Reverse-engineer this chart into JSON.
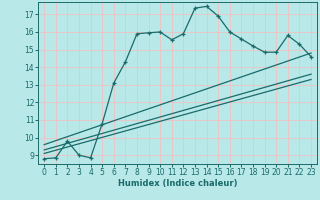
{
  "xlabel": "Humidex (Indice chaleur)",
  "bg_color": "#b8e8e8",
  "grid_color": "#e8c8c8",
  "line_color": "#1a6b6b",
  "xlim": [
    -0.5,
    23.5
  ],
  "ylim": [
    8.5,
    17.7
  ],
  "yticks": [
    9,
    10,
    11,
    12,
    13,
    14,
    15,
    16,
    17
  ],
  "xticks": [
    0,
    1,
    2,
    3,
    4,
    5,
    6,
    7,
    8,
    9,
    10,
    11,
    12,
    13,
    14,
    15,
    16,
    17,
    18,
    19,
    20,
    21,
    22,
    23
  ],
  "curve_x": [
    0,
    1,
    2,
    3,
    4,
    5,
    6,
    7,
    8,
    9,
    10,
    11,
    12,
    13,
    14,
    15,
    16,
    17,
    18,
    19,
    20,
    21,
    22,
    23
  ],
  "curve_y": [
    8.8,
    8.85,
    9.8,
    9.0,
    8.85,
    10.8,
    13.1,
    14.3,
    15.9,
    15.95,
    16.0,
    15.55,
    15.9,
    17.35,
    17.45,
    16.9,
    16.0,
    15.6,
    15.2,
    14.85,
    14.85,
    15.8,
    15.3,
    14.6
  ],
  "line1_x": [
    0,
    23
  ],
  "line1_y": [
    9.1,
    13.3
  ],
  "line2_x": [
    0,
    23
  ],
  "line2_y": [
    9.3,
    13.6
  ],
  "line3_x": [
    0,
    23
  ],
  "line3_y": [
    9.6,
    14.8
  ]
}
